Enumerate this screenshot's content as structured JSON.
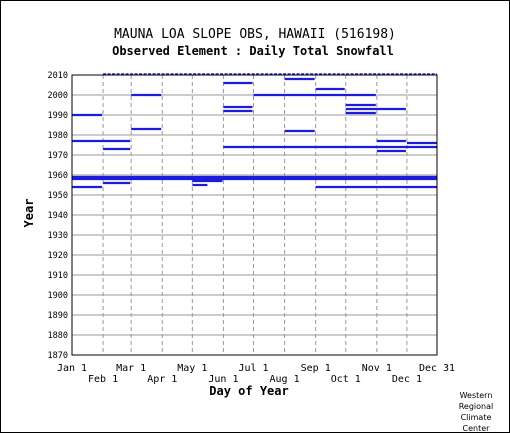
{
  "chart_data": {
    "type": "bar",
    "title": "MAUNA LOA SLOPE OBS, HAWAII   (516198)",
    "subtitle": "Observed Element : Daily Total Snowfall",
    "xlabel": "Day of Year",
    "ylabel": "Year",
    "ylim": [
      1870,
      2010
    ],
    "ytick_labels": [
      "2010",
      "2000",
      "1990",
      "1980",
      "1970",
      "1960",
      "1950",
      "1940",
      "1930",
      "1920",
      "1910",
      "1900",
      "1890",
      "1880",
      "1870"
    ],
    "xtick_labels_top": [
      "Jan 1",
      "Mar 1",
      "May 1",
      "Jul 1",
      "Sep 1",
      "Nov 1",
      "Dec 31"
    ],
    "xtick_labels_bottom": [
      "Feb 1",
      "Apr 1",
      "Jun 1",
      "Aug 1",
      "Oct 1",
      "Dec 1"
    ],
    "grid": true,
    "series": [
      {
        "values": [
          {
            "start_day": 1,
            "end_day": 365,
            "year": 1959
          },
          {
            "start_day": 1,
            "end_day": 365,
            "year": 1958
          },
          {
            "start_day": 1,
            "end_day": 31,
            "year": 1990
          },
          {
            "start_day": 1,
            "end_day": 59,
            "year": 1977
          },
          {
            "start_day": 1,
            "end_day": 31,
            "year": 1954
          },
          {
            "start_day": 32,
            "end_day": 59,
            "year": 1973
          },
          {
            "start_day": 32,
            "end_day": 59,
            "year": 1956
          },
          {
            "start_day": 60,
            "end_day": 90,
            "year": 2000
          },
          {
            "start_day": 60,
            "end_day": 90,
            "year": 1983
          },
          {
            "start_day": 121,
            "end_day": 151,
            "year": 1957
          },
          {
            "start_day": 121,
            "end_day": 136,
            "year": 1955
          },
          {
            "start_day": 152,
            "end_day": 181,
            "year": 2006
          },
          {
            "start_day": 152,
            "end_day": 181,
            "year": 1994
          },
          {
            "start_day": 152,
            "end_day": 181,
            "year": 1992
          },
          {
            "start_day": 152,
            "end_day": 365,
            "year": 1974
          },
          {
            "start_day": 182,
            "end_day": 304,
            "year": 2000
          },
          {
            "start_day": 213,
            "end_day": 243,
            "year": 2008
          },
          {
            "start_day": 213,
            "end_day": 243,
            "year": 1982
          },
          {
            "start_day": 244,
            "end_day": 273,
            "year": 2003
          },
          {
            "start_day": 244,
            "end_day": 365,
            "year": 1954
          },
          {
            "start_day": 274,
            "end_day": 304,
            "year": 1995
          },
          {
            "start_day": 274,
            "end_day": 334,
            "year": 1993
          },
          {
            "start_day": 274,
            "end_day": 304,
            "year": 1991
          },
          {
            "start_day": 305,
            "end_day": 334,
            "year": 1977
          },
          {
            "start_day": 305,
            "end_day": 334,
            "year": 1972
          },
          {
            "start_day": 335,
            "end_day": 365,
            "year": 1976
          }
        ]
      }
    ],
    "dashed_2010": {
      "start_day": 32,
      "end_day": 365,
      "year": 2009.5
    }
  },
  "footer": {
    "lines": [
      "Western",
      "Regional",
      "Climate",
      "Center"
    ]
  },
  "colors": {
    "bar": "#1c1cdd",
    "grid": "#999999",
    "frame": "#000000"
  }
}
